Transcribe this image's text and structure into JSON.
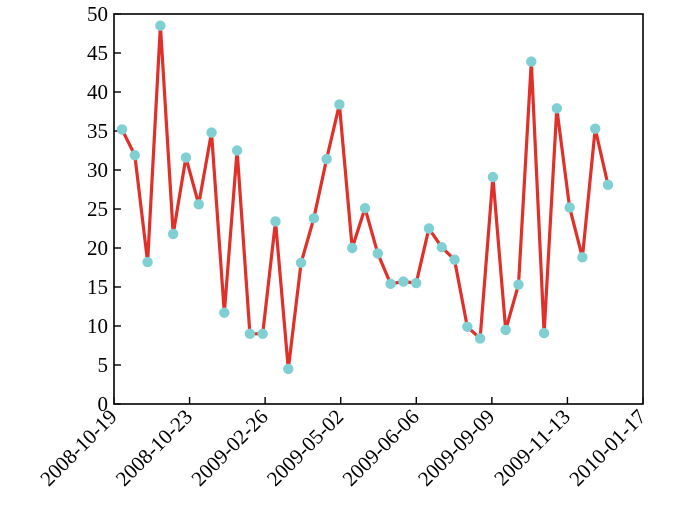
{
  "chart_data": {
    "type": "line",
    "title": "",
    "xlabel": "",
    "ylabel": "",
    "ylim": [
      0,
      50
    ],
    "y_ticks": [
      0,
      5,
      10,
      15,
      20,
      25,
      30,
      35,
      40,
      45,
      50
    ],
    "x_tick_labels": [
      "2008-10-19",
      "2008-10-23",
      "2009-02-26",
      "2009-05-02",
      "2009-06-06",
      "2009-09-09",
      "2009-11-13",
      "2010-01-17"
    ],
    "grid": false,
    "legend": "none",
    "line_color": "#e0302a",
    "marker_color": "#7fcfd3",
    "series": [
      {
        "values": [
          35.2,
          31.9,
          18.2,
          48.5,
          21.8,
          31.6,
          25.6,
          34.8,
          11.7,
          32.5,
          9.0,
          9.0,
          23.4,
          4.5,
          18.1,
          23.8,
          31.4,
          38.4,
          20.0,
          25.1,
          19.3,
          15.4,
          15.7,
          15.5,
          22.5,
          20.1,
          18.5,
          9.9,
          8.4,
          29.1,
          9.5,
          15.3,
          43.9,
          9.1,
          37.9,
          25.2,
          18.8,
          35.3,
          28.1
        ]
      }
    ]
  }
}
